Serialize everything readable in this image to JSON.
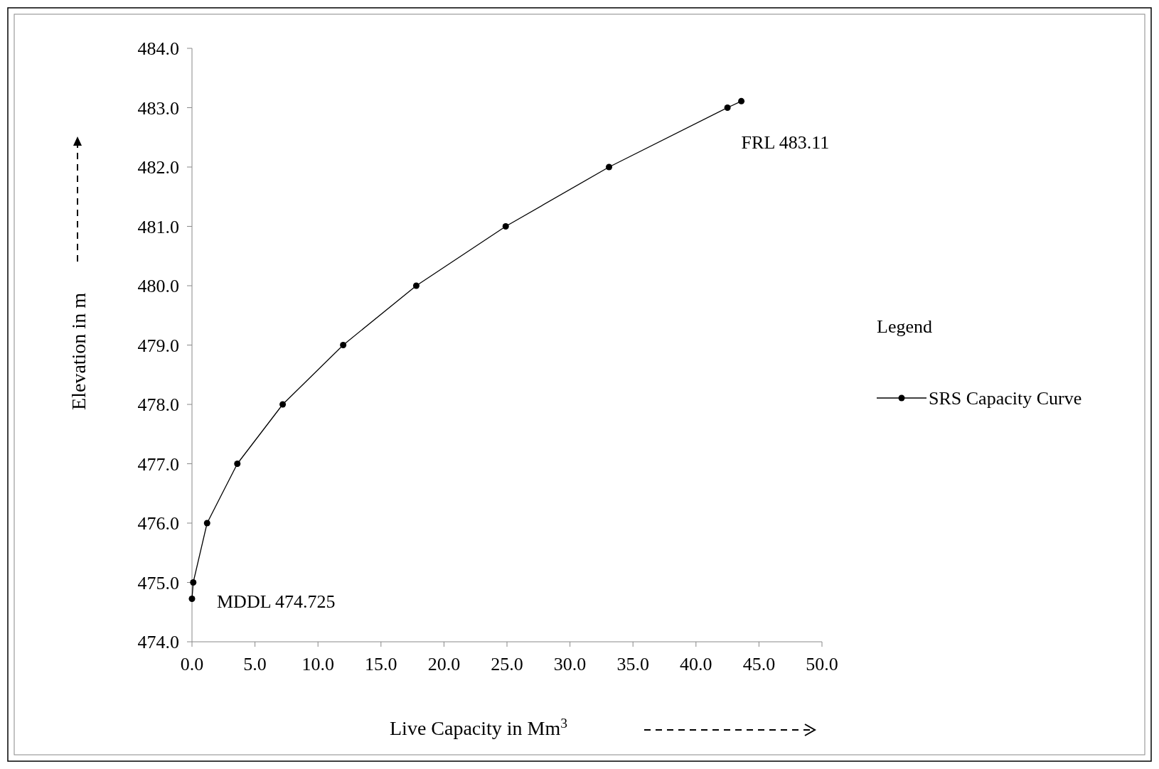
{
  "chart_data": {
    "type": "line",
    "xlabel": "Live Capacity in Mm$^{3}$",
    "ylabel": "Elevation in m",
    "legend_title": "Legend",
    "legend": "right",
    "marker": "circle",
    "line_style": "solid",
    "x": [
      0,
      0.1,
      1.2,
      3.6,
      7.2,
      12.0,
      17.8,
      24.9,
      33.1,
      42.5,
      43.6
    ],
    "series": [
      {
        "name": "SRS Capacity Curve",
        "color": "#000000",
        "values": [
          474.725,
          475.0,
          476.0,
          477.0,
          478.0,
          479.0,
          480.0,
          481.0,
          482.0,
          483.0,
          483.11
        ]
      }
    ],
    "xlim": [
      0,
      50
    ],
    "ylim": [
      474,
      484
    ],
    "xticks": [
      {
        "value": 0,
        "label": "0.0"
      },
      {
        "value": 5,
        "label": "5.0"
      },
      {
        "value": 10,
        "label": "10.0"
      },
      {
        "value": 15,
        "label": "15.0"
      },
      {
        "value": 20,
        "label": "20.0"
      },
      {
        "value": 25,
        "label": "25.0"
      },
      {
        "value": 30,
        "label": "30.0"
      },
      {
        "value": 35,
        "label": "35.0"
      },
      {
        "value": 40,
        "label": "40.0"
      },
      {
        "value": 45,
        "label": "45.0"
      },
      {
        "value": 50,
        "label": "50.0"
      }
    ],
    "yticks": [
      {
        "value": 474,
        "label": "474.0"
      },
      {
        "value": 475,
        "label": "475.0"
      },
      {
        "value": 476,
        "label": "476.0"
      },
      {
        "value": 477,
        "label": "477.0"
      },
      {
        "value": 478,
        "label": "478.0"
      },
      {
        "value": 479,
        "label": "479.0"
      },
      {
        "value": 480,
        "label": "480.0"
      },
      {
        "value": 481,
        "label": "481.0"
      },
      {
        "value": 482,
        "label": "482.0"
      },
      {
        "value": 483,
        "label": "483.0"
      },
      {
        "value": 484,
        "label": "484.0"
      }
    ],
    "annotations": [
      {
        "text": "FRL 483.11",
        "x": 43.6,
        "y": 483.11
      },
      {
        "text": "MDDL  474.725",
        "x": 0,
        "y": 474.725
      }
    ]
  }
}
